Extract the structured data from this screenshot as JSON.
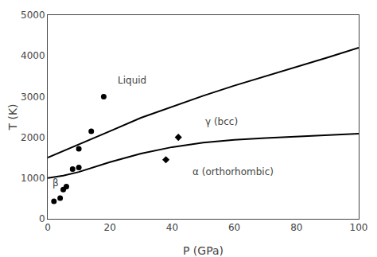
{
  "chart_data": {
    "type": "scatter",
    "xlabel": "P (GPa)",
    "ylabel": "T (K)",
    "xlim": [
      0,
      100
    ],
    "ylim": [
      0,
      5000
    ],
    "xticks": [
      0,
      20,
      40,
      60,
      80,
      100
    ],
    "yticks": [
      0,
      1000,
      2000,
      3000,
      4000,
      5000
    ],
    "grid": false,
    "series": [
      {
        "type": "line",
        "color": "#000000",
        "x": [
          0,
          10,
          20,
          30,
          40,
          50,
          60,
          70,
          80,
          90,
          100
        ],
        "values": [
          1500,
          1820,
          2150,
          2480,
          2750,
          3020,
          3270,
          3500,
          3720,
          3960,
          4200
        ]
      },
      {
        "type": "line",
        "color": "#000000",
        "x": [
          0,
          5,
          10,
          15,
          20,
          30,
          40,
          50,
          60,
          70,
          80,
          90,
          100
        ],
        "values": [
          1000,
          1060,
          1150,
          1270,
          1390,
          1600,
          1760,
          1870,
          1940,
          1980,
          2020,
          2060,
          2090
        ]
      },
      {
        "type": "scatter",
        "marker": "circle",
        "color": "#000000",
        "x": [
          2,
          4,
          5,
          6,
          8,
          10,
          10,
          14,
          18
        ],
        "values": [
          430,
          510,
          720,
          790,
          1220,
          1260,
          1720,
          2150,
          3000
        ]
      },
      {
        "type": "scatter",
        "marker": "diamond",
        "color": "#000000",
        "x": [
          42,
          38
        ],
        "values": [
          2000,
          1450
        ]
      }
    ],
    "annotations": [
      {
        "text": "Liquid",
        "x": 22,
        "y": 3400
      },
      {
        "text": "γ (bcc)",
        "x": 50,
        "y": 2380
      },
      {
        "text": "α (orthorhombic)",
        "x": 46,
        "y": 1150
      },
      {
        "text": "β",
        "x": 1.0,
        "y": 870
      }
    ]
  }
}
